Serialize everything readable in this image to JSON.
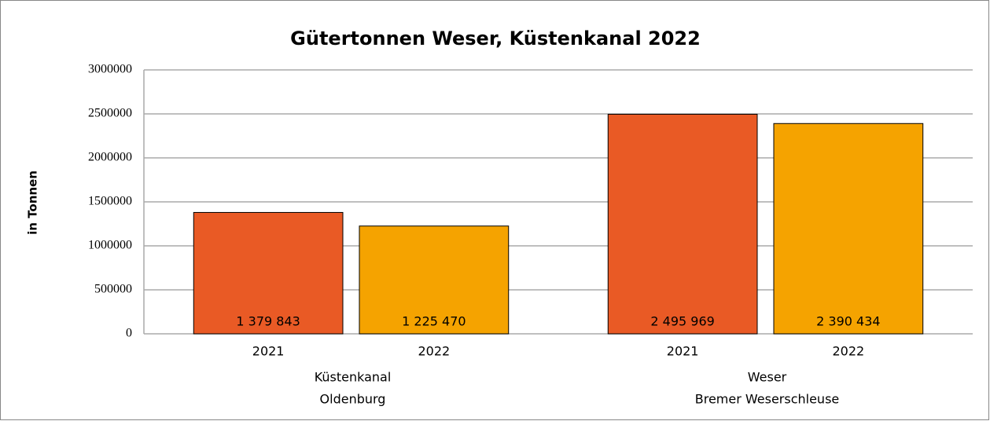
{
  "chart_data": {
    "type": "bar",
    "title": "Gütertonnen Weser, Küstenkanal 2022",
    "y_label": "in Tonnen",
    "groups": [
      {
        "label_lines": [
          "Küstenkanal",
          "Oldenburg"
        ],
        "categories": [
          "2021",
          "2022"
        ],
        "values": [
          1379843,
          1225470
        ],
        "value_labels": [
          "1 379 843",
          "1 225 470"
        ]
      },
      {
        "label_lines": [
          "Weser",
          "Bremer Weserschleuse"
        ],
        "categories": [
          "2021",
          "2022"
        ],
        "values": [
          2495969,
          2390434
        ],
        "value_labels": [
          "2 495 969",
          "2 390 434"
        ]
      }
    ],
    "colors": [
      "#e95a25",
      "#f5a300"
    ],
    "ylim": [
      0,
      3000000
    ],
    "yticks": [
      0,
      500000,
      1000000,
      1500000,
      2000000,
      2500000,
      3000000
    ],
    "grid": true
  }
}
